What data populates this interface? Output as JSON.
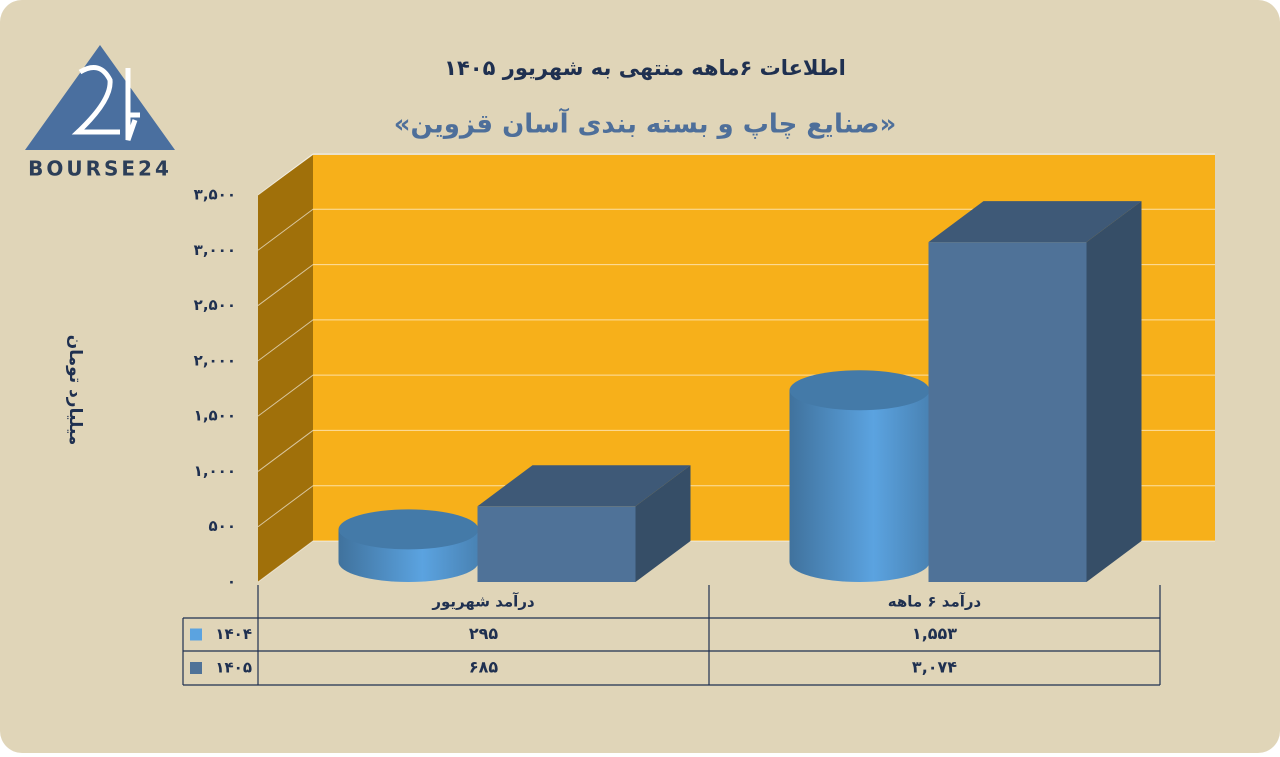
{
  "logo": {
    "text": "BOURSE24"
  },
  "chart_data": {
    "type": "bar3d",
    "title": "اطلاعات ۶ماهه منتهی به شهریور ۱۴۰۵",
    "subtitle": "«صنایع چاپ و بسته بندی آسان قزوین»",
    "y_label": "میلیارد تومان",
    "categories": [
      "درآمد شهریور",
      "درآمد ۶ ماهه"
    ],
    "series": [
      {
        "name": "۱۴۰۴",
        "color": "#5ba3e0",
        "shape": "cylinder",
        "values": [
          295,
          1553
        ],
        "value_labels": [
          "۲۹۵",
          "۱,۵۵۳"
        ]
      },
      {
        "name": "۱۴۰۵",
        "color": "#4f7298",
        "shape": "box",
        "values": [
          685,
          3074
        ],
        "value_labels": [
          "۶۸۵",
          "۳,۰۷۴"
        ]
      }
    ],
    "ylim": [
      0,
      3500
    ],
    "yticks": [
      {
        "value": 0,
        "label": "۰"
      },
      {
        "value": 500,
        "label": "۵۰۰"
      },
      {
        "value": 1000,
        "label": "۱,۰۰۰"
      },
      {
        "value": 1500,
        "label": "۱,۵۰۰"
      },
      {
        "value": 2000,
        "label": "۲,۰۰۰"
      },
      {
        "value": 2500,
        "label": "۲,۵۰۰"
      },
      {
        "value": 3000,
        "label": "۳,۰۰۰"
      },
      {
        "value": 3500,
        "label": "۳,۵۰۰"
      }
    ],
    "grid": true,
    "data_table": true
  }
}
